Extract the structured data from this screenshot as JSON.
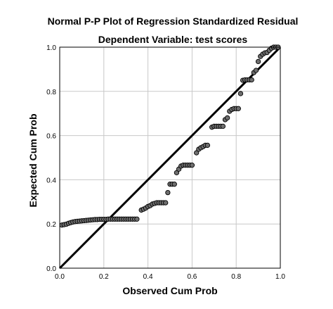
{
  "chart_data": {
    "type": "scatter",
    "title": "Normal P-P Plot of Regression Standardized Residual",
    "subtitle": "Dependent Variable: test scores",
    "xlabel": "Observed Cum Prob",
    "ylabel": "Expected Cum Prob",
    "xlim": [
      0.0,
      1.0
    ],
    "ylim": [
      0.0,
      1.0
    ],
    "x_ticks": [
      "0.0",
      "0.2",
      "0.4",
      "0.6",
      "0.8",
      "1.0"
    ],
    "y_ticks": [
      "0.0",
      "0.2",
      "0.4",
      "0.6",
      "0.8",
      "1.0"
    ],
    "grid": true,
    "reference_line": {
      "from": [
        0.0,
        0.0
      ],
      "to": [
        1.0,
        1.0
      ]
    },
    "point_color": "#6e6e6e",
    "points": [
      [
        0.01,
        0.195
      ],
      [
        0.02,
        0.197
      ],
      [
        0.03,
        0.199
      ],
      [
        0.04,
        0.203
      ],
      [
        0.05,
        0.206
      ],
      [
        0.06,
        0.209
      ],
      [
        0.07,
        0.211
      ],
      [
        0.08,
        0.212
      ],
      [
        0.09,
        0.213
      ],
      [
        0.1,
        0.214
      ],
      [
        0.11,
        0.215
      ],
      [
        0.12,
        0.216
      ],
      [
        0.13,
        0.217
      ],
      [
        0.14,
        0.218
      ],
      [
        0.15,
        0.219
      ],
      [
        0.16,
        0.22
      ],
      [
        0.17,
        0.22
      ],
      [
        0.18,
        0.221
      ],
      [
        0.19,
        0.221
      ],
      [
        0.2,
        0.221
      ],
      [
        0.21,
        0.221
      ],
      [
        0.22,
        0.222
      ],
      [
        0.23,
        0.222
      ],
      [
        0.24,
        0.222
      ],
      [
        0.25,
        0.222
      ],
      [
        0.26,
        0.222
      ],
      [
        0.27,
        0.222
      ],
      [
        0.28,
        0.222
      ],
      [
        0.29,
        0.222
      ],
      [
        0.3,
        0.222
      ],
      [
        0.31,
        0.222
      ],
      [
        0.32,
        0.222
      ],
      [
        0.33,
        0.222
      ],
      [
        0.34,
        0.222
      ],
      [
        0.35,
        0.222
      ],
      [
        0.37,
        0.263
      ],
      [
        0.38,
        0.267
      ],
      [
        0.39,
        0.272
      ],
      [
        0.4,
        0.279
      ],
      [
        0.41,
        0.283
      ],
      [
        0.42,
        0.29
      ],
      [
        0.43,
        0.293
      ],
      [
        0.44,
        0.296
      ],
      [
        0.45,
        0.296
      ],
      [
        0.46,
        0.296
      ],
      [
        0.47,
        0.296
      ],
      [
        0.48,
        0.296
      ],
      [
        0.49,
        0.342
      ],
      [
        0.5,
        0.38
      ],
      [
        0.51,
        0.38
      ],
      [
        0.52,
        0.38
      ],
      [
        0.53,
        0.432
      ],
      [
        0.54,
        0.448
      ],
      [
        0.55,
        0.462
      ],
      [
        0.56,
        0.466
      ],
      [
        0.57,
        0.466
      ],
      [
        0.58,
        0.466
      ],
      [
        0.59,
        0.466
      ],
      [
        0.6,
        0.466
      ],
      [
        0.62,
        0.522
      ],
      [
        0.63,
        0.538
      ],
      [
        0.64,
        0.545
      ],
      [
        0.65,
        0.55
      ],
      [
        0.66,
        0.556
      ],
      [
        0.67,
        0.556
      ],
      [
        0.69,
        0.638
      ],
      [
        0.7,
        0.642
      ],
      [
        0.71,
        0.642
      ],
      [
        0.72,
        0.642
      ],
      [
        0.73,
        0.642
      ],
      [
        0.74,
        0.642
      ],
      [
        0.75,
        0.672
      ],
      [
        0.76,
        0.68
      ],
      [
        0.77,
        0.71
      ],
      [
        0.78,
        0.718
      ],
      [
        0.79,
        0.722
      ],
      [
        0.8,
        0.722
      ],
      [
        0.81,
        0.722
      ],
      [
        0.82,
        0.79
      ],
      [
        0.83,
        0.85
      ],
      [
        0.84,
        0.852
      ],
      [
        0.85,
        0.852
      ],
      [
        0.86,
        0.852
      ],
      [
        0.87,
        0.852
      ],
      [
        0.88,
        0.885
      ],
      [
        0.89,
        0.895
      ],
      [
        0.9,
        0.935
      ],
      [
        0.91,
        0.958
      ],
      [
        0.92,
        0.968
      ],
      [
        0.93,
        0.974
      ],
      [
        0.94,
        0.976
      ],
      [
        0.95,
        0.986
      ],
      [
        0.96,
        0.995
      ],
      [
        0.97,
        1.0
      ],
      [
        0.98,
        1.0
      ],
      [
        0.99,
        1.0
      ]
    ]
  }
}
